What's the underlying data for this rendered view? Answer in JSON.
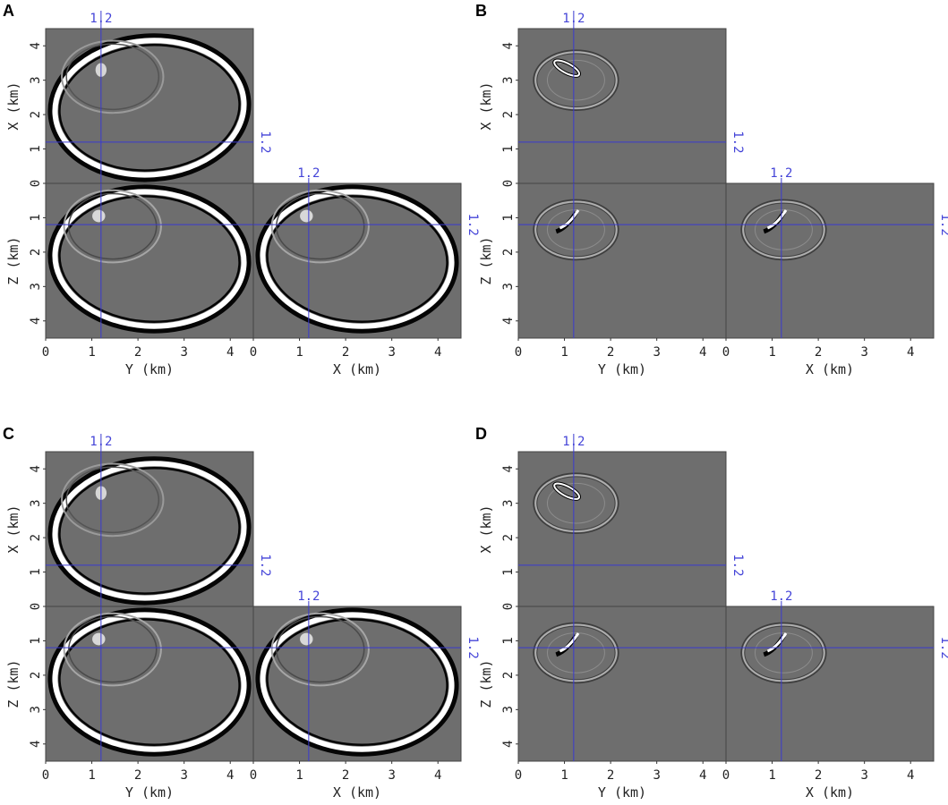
{
  "panels": [
    {
      "letter": "A",
      "variant": "large",
      "top_axis_label": "X (km)",
      "side_axis_label": "Z (km)",
      "bottom_left_label": "Y (km)",
      "bottom_right_label": "X (km)",
      "slice_value": "1.2"
    },
    {
      "letter": "B",
      "variant": "small",
      "top_axis_label": "X (km)",
      "side_axis_label": "Z (km)",
      "bottom_left_label": "Y (km)",
      "bottom_right_label": "X (km)",
      "slice_value": "1.2"
    },
    {
      "letter": "C",
      "variant": "large",
      "top_axis_label": "X (km)",
      "side_axis_label": "Z (km)",
      "bottom_left_label": "Y (km)",
      "bottom_right_label": "X (km)",
      "slice_value": "1.2"
    },
    {
      "letter": "D",
      "variant": "small",
      "top_axis_label": "X (km)",
      "side_axis_label": "Z (km)",
      "bottom_left_label": "Y (km)",
      "bottom_right_label": "X (km)",
      "slice_value": "1.2"
    }
  ],
  "ticks": [
    "0",
    "1",
    "2",
    "3",
    "4"
  ],
  "tick_values": [
    0,
    1,
    2,
    3,
    4
  ],
  "axis_range_km": [
    0,
    4.5
  ],
  "slice_km": 1.2,
  "colors": {
    "background": "#6e6e6e",
    "slice_line": "#3a3ad0",
    "slice_text": "#4545d8",
    "wavefront_dark": "#050505",
    "wavefront_light": "#ffffff"
  }
}
